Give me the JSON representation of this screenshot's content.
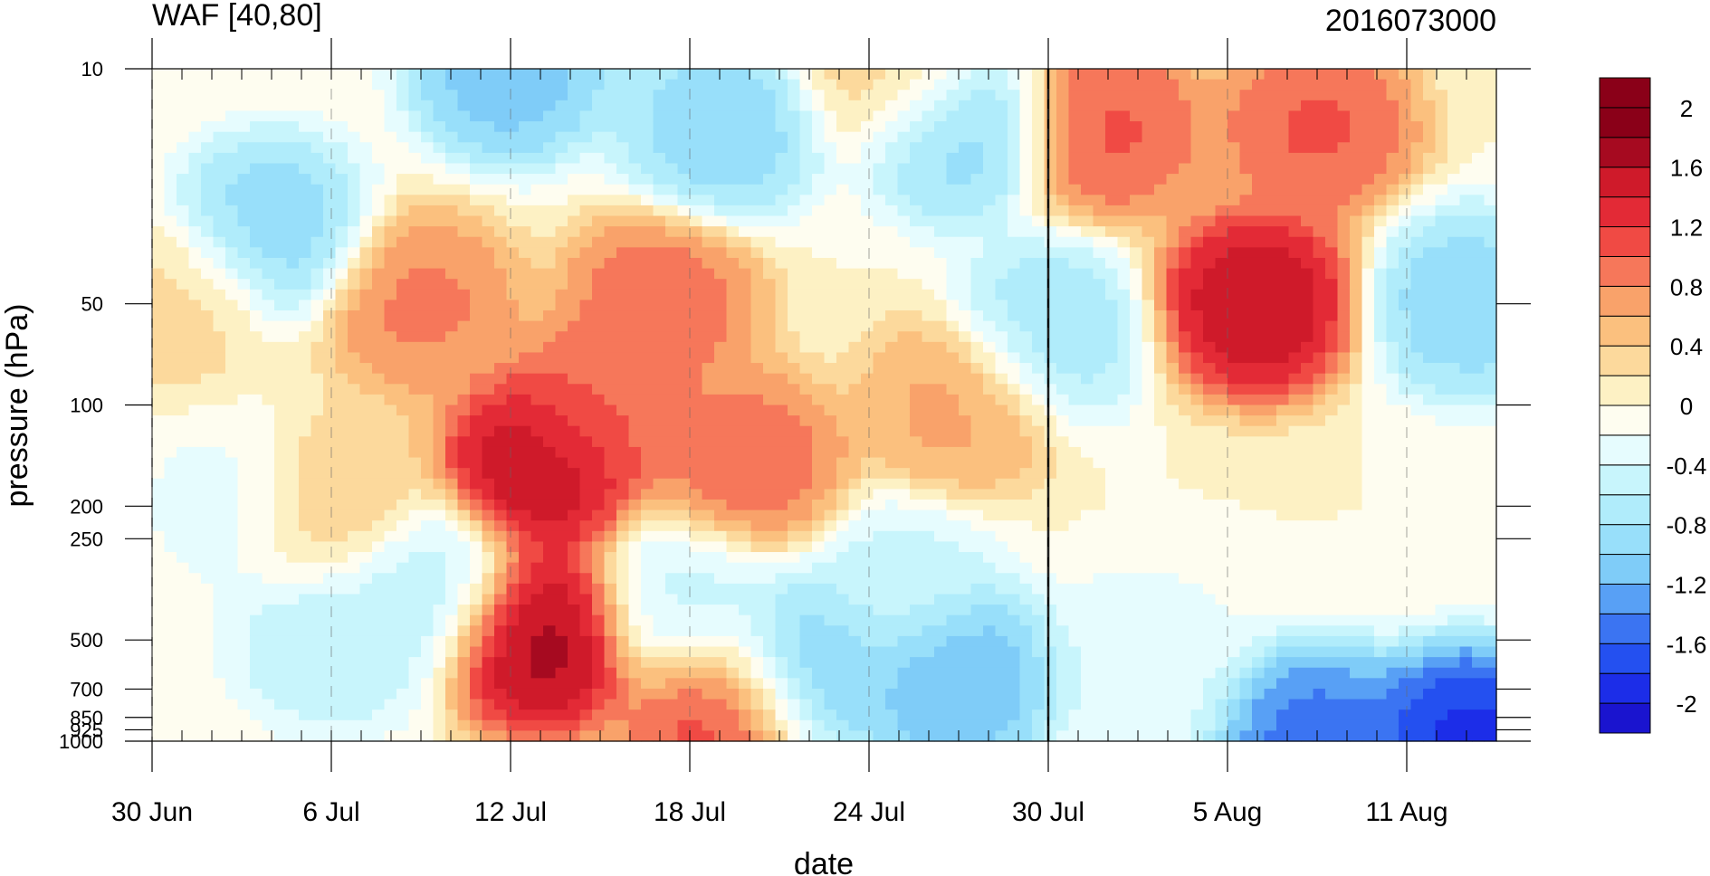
{
  "chart_data": {
    "type": "heatmap",
    "title": "WAF [40,80]",
    "right_title": "2016073000",
    "xlabel": "date",
    "ylabel": "pressure (hPa)",
    "x_ticks": [
      "30 Jun",
      "6 Jul",
      "12 Jul",
      "18 Jul",
      "24 Jul",
      "30 Jul",
      "5 Aug",
      "11 Aug"
    ],
    "x_start": "2016-06-30",
    "x_end": "2016-08-14",
    "y_scale": "log",
    "y_ticks": [
      10,
      50,
      100,
      200,
      250,
      500,
      700,
      850,
      925,
      1000
    ],
    "y_tick_labels": [
      "10",
      "50",
      "100",
      "200",
      "250",
      "500",
      "700",
      "850",
      "925",
      "1000"
    ],
    "ylim": [
      1000,
      10
    ],
    "forecast_start_line": "30 Jul",
    "colorbar": {
      "levels": [
        -2.2,
        -2.0,
        -1.8,
        -1.6,
        -1.4,
        -1.2,
        -1.0,
        -0.8,
        -0.6,
        -0.4,
        -0.2,
        0,
        0.2,
        0.4,
        0.6,
        0.8,
        1.0,
        1.2,
        1.4,
        1.6,
        1.8,
        2.0,
        2.2
      ],
      "labels": [
        "-2",
        "-1.6",
        "-1.2",
        "-0.8",
        "-0.4",
        "0",
        "0.4",
        "0.8",
        "1.2",
        "1.6",
        "2"
      ],
      "colors": [
        "#1a14cf",
        "#1c2de8",
        "#2450f0",
        "#3b74f2",
        "#58a0f5",
        "#7fccf8",
        "#98dffa",
        "#b0ecfb",
        "#c8f5fc",
        "#e6fcfe",
        "#fefdf0",
        "#fdf1c4",
        "#fcd99c",
        "#fbc07e",
        "#f9a26a",
        "#f6775a",
        "#f04a44",
        "#e32a36",
        "#cf1a2a",
        "#a60a20",
        "#8a0018",
        "#8a0018"
      ]
    },
    "field_centers": [
      {
        "date": "2016-07-04",
        "p": 30,
        "v": -1.0
      },
      {
        "date": "2016-07-12",
        "p": 10,
        "v": -1.2
      },
      {
        "date": "2016-07-09",
        "p": 50,
        "v": 0.9
      },
      {
        "date": "2016-07-06",
        "p": 200,
        "v": 0.5
      },
      {
        "date": "2016-07-13",
        "p": 150,
        "v": 1.7
      },
      {
        "date": "2016-07-13",
        "p": 500,
        "v": 1.8
      },
      {
        "date": "2016-07-17",
        "p": 50,
        "v": 1.0
      },
      {
        "date": "2016-07-15",
        "p": 100,
        "v": 1.0
      },
      {
        "date": "2016-07-20",
        "p": 150,
        "v": 1.0
      },
      {
        "date": "2016-07-19",
        "p": 800,
        "v": 1.2
      },
      {
        "date": "2016-07-09",
        "p": 350,
        "v": -0.6
      },
      {
        "date": "2016-07-06",
        "p": 500,
        "v": -0.6
      },
      {
        "date": "2016-07-18",
        "p": 400,
        "v": -0.5
      },
      {
        "date": "2016-07-19",
        "p": 15,
        "v": -1.0
      },
      {
        "date": "2016-07-27",
        "p": 15,
        "v": -1.0
      },
      {
        "date": "2016-07-22",
        "p": 600,
        "v": -1.1
      },
      {
        "date": "2016-07-27",
        "p": 650,
        "v": -1.3
      },
      {
        "date": "2016-07-25",
        "p": 10,
        "v": 0.4
      },
      {
        "date": "2016-07-27",
        "p": 100,
        "v": 0.7
      },
      {
        "date": "2016-08-01",
        "p": 15,
        "v": 1.1
      },
      {
        "date": "2016-08-06",
        "p": 50,
        "v": 1.7
      },
      {
        "date": "2016-08-08",
        "p": 15,
        "v": 1.1
      },
      {
        "date": "2016-08-13",
        "p": 50,
        "v": -1.0
      },
      {
        "date": "2016-08-13",
        "p": 1000,
        "v": -2.0
      },
      {
        "date": "2016-08-08",
        "p": 1000,
        "v": -1.6
      },
      {
        "date": "2016-07-25",
        "p": 350,
        "v": -0.5
      },
      {
        "date": "2016-08-02",
        "p": 600,
        "v": -0.4
      },
      {
        "date": "2016-07-30",
        "p": 60,
        "v": -0.8
      },
      {
        "date": "2016-07-01",
        "p": 50,
        "v": 0.3
      },
      {
        "date": "2016-07-03",
        "p": 200,
        "v": -0.3
      }
    ]
  }
}
